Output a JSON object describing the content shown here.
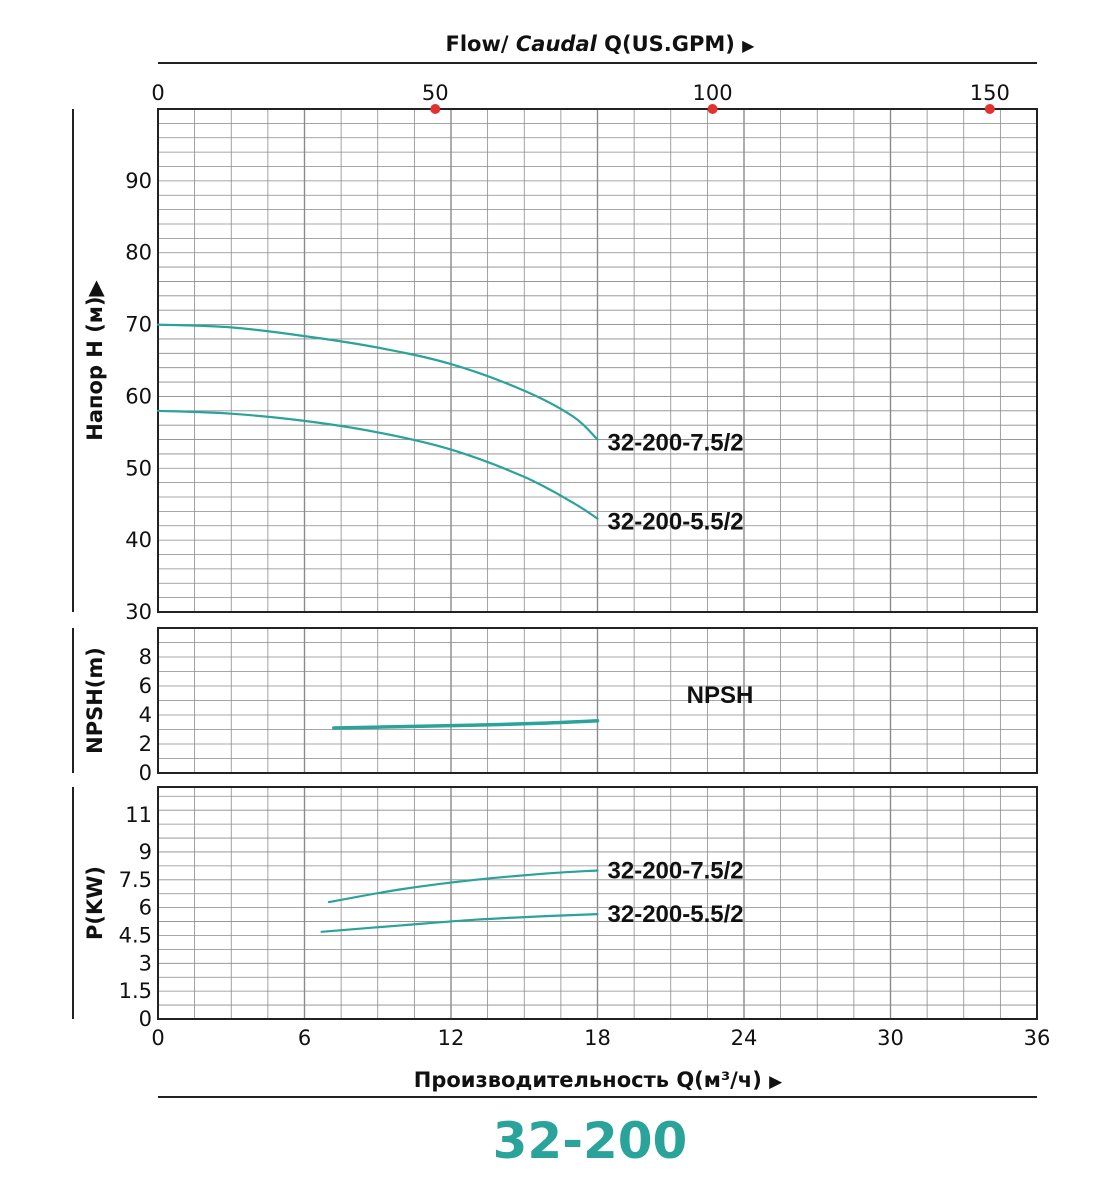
{
  "colors": {
    "curve": "#2aa39a",
    "grid": "#8a8a8a",
    "frame": "#222222",
    "marker": "#e53030",
    "model": "#2aa39a"
  },
  "top_axis": {
    "title_flow": "Flow/",
    "title_caudal": "Caudal",
    "title_q": "Q(US.GPM)",
    "arrow": "▶",
    "ticks": [
      "0",
      "50",
      "100",
      "150"
    ]
  },
  "bottom_axis": {
    "title": "Производительность Q(м³/ч)",
    "arrow": "▶",
    "ticks": [
      "0",
      "6",
      "12",
      "18",
      "24",
      "30",
      "36"
    ]
  },
  "model_title": "32-200",
  "chart_data": [
    {
      "type": "line",
      "panel": "head",
      "ylabel": "Напор H (м)▶",
      "xlim": [
        0,
        36
      ],
      "ylim": [
        30,
        100
      ],
      "yticks": [
        "30",
        "40",
        "50",
        "60",
        "70",
        "80",
        "90"
      ],
      "x2_gpm_ticks": [
        0,
        50,
        100,
        150
      ],
      "series": [
        {
          "name": "32-200-7.5/2",
          "x": [
            0,
            3,
            6,
            9,
            12,
            15,
            17,
            18
          ],
          "y": [
            70,
            69.6,
            68.4,
            66.8,
            64.5,
            60.8,
            57.2,
            54
          ]
        },
        {
          "name": "32-200-5.5/2",
          "x": [
            0,
            3,
            6,
            9,
            12,
            15,
            17,
            18
          ],
          "y": [
            58,
            57.6,
            56.6,
            55,
            52.6,
            48.8,
            45.2,
            43
          ]
        }
      ]
    },
    {
      "type": "line",
      "panel": "npsh",
      "ylabel": "NPSH(m)",
      "xlim": [
        0,
        36
      ],
      "ylim": [
        0,
        10
      ],
      "yticks": [
        "0",
        "2",
        "4",
        "6",
        "8"
      ],
      "annotation": "NPSH",
      "series": [
        {
          "name": "NPSH",
          "x": [
            7.2,
            10,
            13,
            16,
            18
          ],
          "y": [
            3.1,
            3.2,
            3.3,
            3.45,
            3.6
          ]
        }
      ]
    },
    {
      "type": "line",
      "panel": "power",
      "ylabel": "P(KW)",
      "xlim": [
        0,
        36
      ],
      "ylim": [
        0,
        12.5
      ],
      "yticks": [
        "0",
        "1.5",
        "3",
        "4.5",
        "6",
        "7.5",
        "9",
        "11"
      ],
      "series": [
        {
          "name": "32-200-7.5/2",
          "x": [
            7,
            10,
            13,
            16,
            18
          ],
          "y": [
            6.3,
            7.0,
            7.5,
            7.85,
            8.0
          ]
        },
        {
          "name": "32-200-5.5/2",
          "x": [
            6.7,
            10,
            13,
            16,
            18
          ],
          "y": [
            4.7,
            5.05,
            5.35,
            5.55,
            5.65
          ]
        }
      ]
    }
  ]
}
